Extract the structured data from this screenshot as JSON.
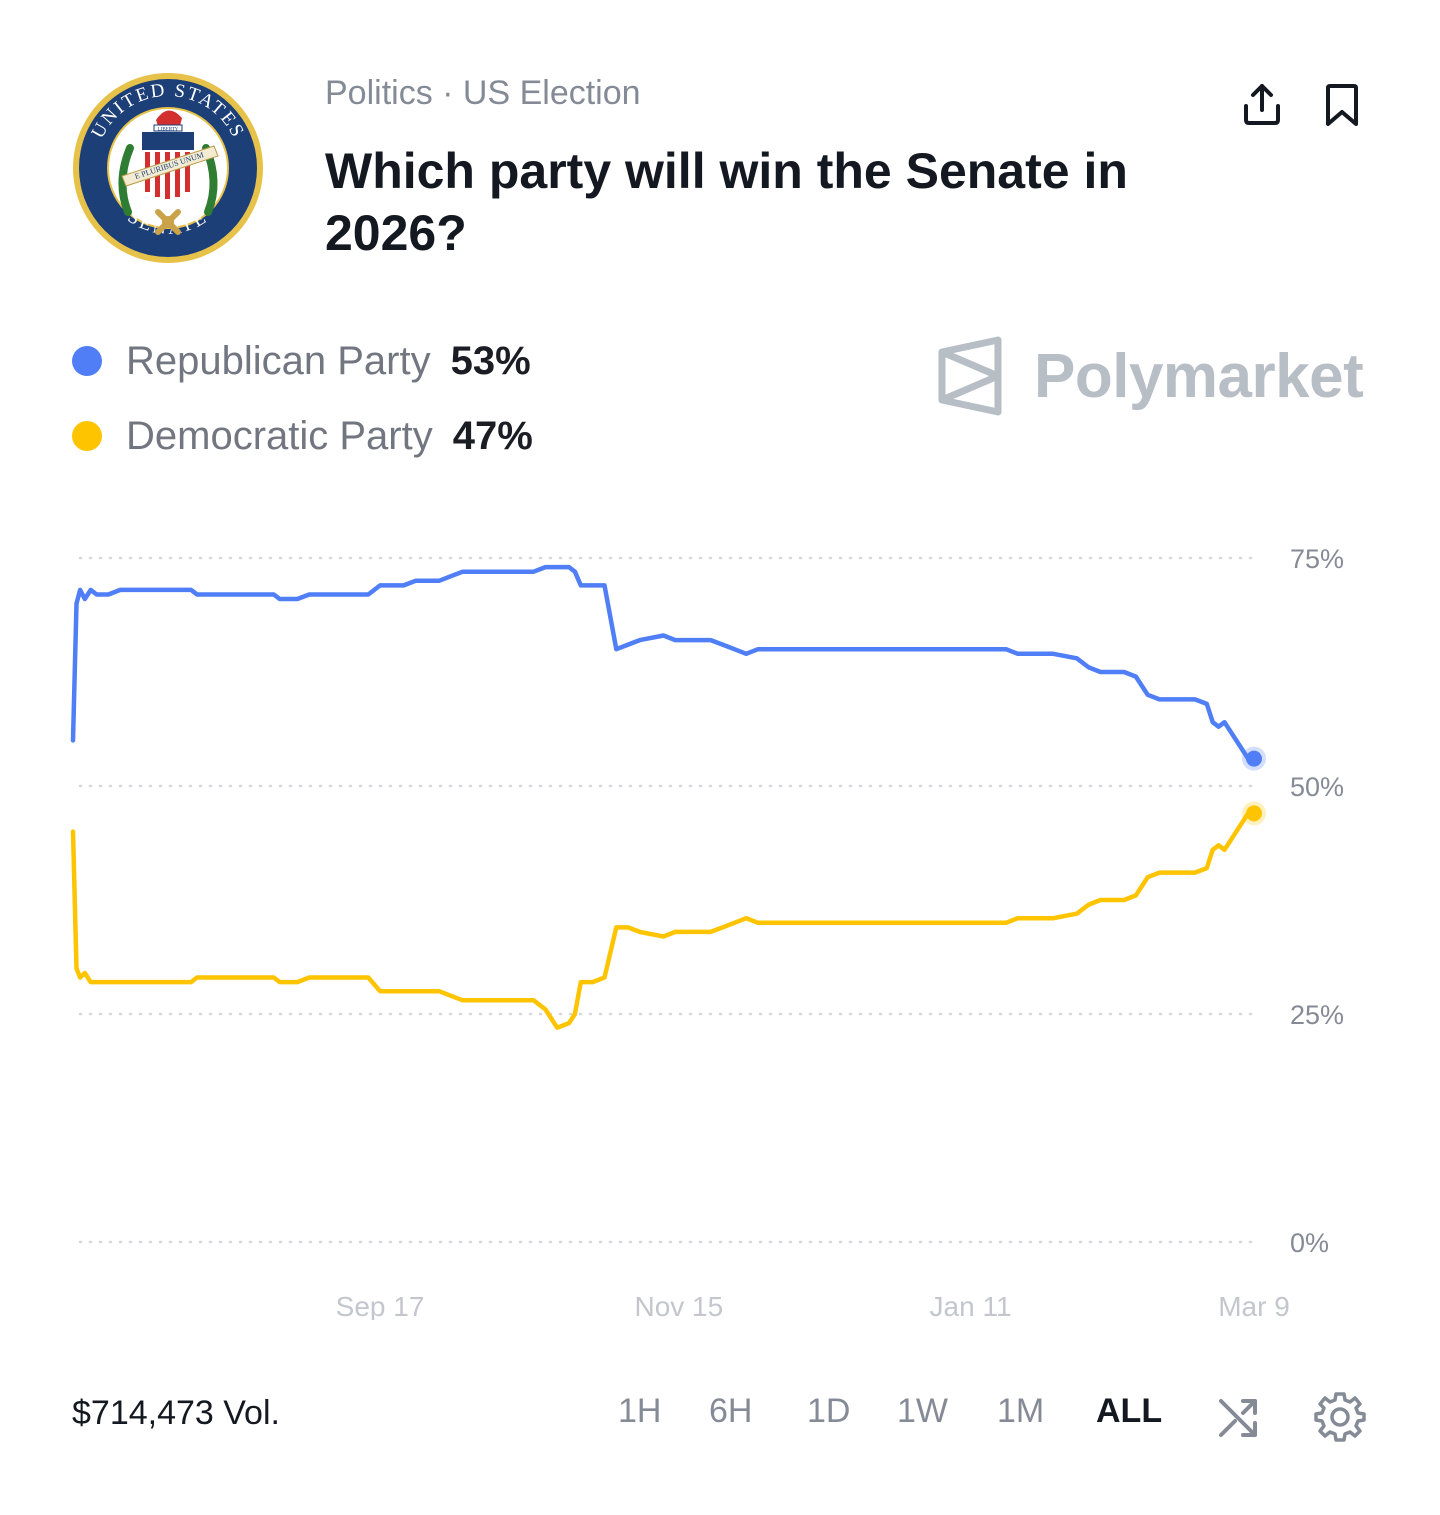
{
  "header": {
    "category": "Politics · US Election",
    "title": "Which party will win the Senate in 2026?",
    "logo": {
      "icon": "us-senate-seal-icon",
      "text_top": "UNITED STATES",
      "text_bottom": "SENATE",
      "motto": "E PLURIBUS UNUM",
      "cap_text": "LIBERTY"
    },
    "actions": [
      {
        "icon": "share-icon"
      },
      {
        "icon": "bookmark-icon"
      }
    ]
  },
  "legend": [
    {
      "name": "Republican Party",
      "value": "53%",
      "color": "#4f7ef7"
    },
    {
      "name": "Democratic Party",
      "value": "47%",
      "color": "#ffc400"
    }
  ],
  "brand": {
    "name": "Polymarket",
    "icon": "polymarket-logo-icon"
  },
  "footer": {
    "volume": "$714,473 Vol.",
    "ranges": [
      "1H",
      "6H",
      "1D",
      "1W",
      "1M",
      "ALL"
    ],
    "active_range": "ALL",
    "icons": [
      "shuffle-icon",
      "settings-gear-icon"
    ]
  },
  "chart_data": {
    "type": "line",
    "y_ticks": [
      "75%",
      "50%",
      "25%",
      "0%"
    ],
    "ylim": [
      0,
      75
    ],
    "x_ticks": [
      "Sep 17",
      "Nov 15",
      "Jan 11",
      "Mar 9"
    ],
    "x_tick_positions": [
      0.26,
      0.513,
      0.76,
      1.0
    ],
    "grid": "dotted horizontal",
    "series": [
      {
        "name": "Republican Party",
        "color": "#4f7ef7",
        "points": [
          [
            0.0,
            55
          ],
          [
            0.003,
            70
          ],
          [
            0.006,
            71.5
          ],
          [
            0.01,
            70.5
          ],
          [
            0.015,
            71.5
          ],
          [
            0.02,
            71
          ],
          [
            0.03,
            71
          ],
          [
            0.04,
            71.5
          ],
          [
            0.06,
            71.5
          ],
          [
            0.08,
            71.5
          ],
          [
            0.1,
            71.5
          ],
          [
            0.105,
            71
          ],
          [
            0.13,
            71
          ],
          [
            0.15,
            71
          ],
          [
            0.17,
            71
          ],
          [
            0.175,
            70.5
          ],
          [
            0.19,
            70.5
          ],
          [
            0.2,
            71
          ],
          [
            0.22,
            71
          ],
          [
            0.25,
            71
          ],
          [
            0.26,
            72
          ],
          [
            0.28,
            72
          ],
          [
            0.29,
            72.5
          ],
          [
            0.31,
            72.5
          ],
          [
            0.32,
            73
          ],
          [
            0.33,
            73.5
          ],
          [
            0.35,
            73.5
          ],
          [
            0.38,
            73.5
          ],
          [
            0.39,
            73.5
          ],
          [
            0.4,
            74
          ],
          [
            0.41,
            74
          ],
          [
            0.42,
            74
          ],
          [
            0.425,
            73.5
          ],
          [
            0.43,
            72
          ],
          [
            0.44,
            72
          ],
          [
            0.45,
            72
          ],
          [
            0.46,
            65
          ],
          [
            0.47,
            65.5
          ],
          [
            0.48,
            66
          ],
          [
            0.5,
            66.5
          ],
          [
            0.51,
            66
          ],
          [
            0.52,
            66
          ],
          [
            0.54,
            66
          ],
          [
            0.55,
            65.5
          ],
          [
            0.56,
            65
          ],
          [
            0.57,
            64.5
          ],
          [
            0.58,
            65
          ],
          [
            0.6,
            65
          ],
          [
            0.62,
            65
          ],
          [
            0.64,
            65
          ],
          [
            0.66,
            65
          ],
          [
            0.67,
            65
          ],
          [
            0.68,
            65
          ],
          [
            0.69,
            65
          ],
          [
            0.7,
            65
          ],
          [
            0.71,
            65
          ],
          [
            0.72,
            65
          ],
          [
            0.73,
            65
          ],
          [
            0.74,
            65
          ],
          [
            0.75,
            65
          ],
          [
            0.76,
            65
          ],
          [
            0.77,
            65
          ],
          [
            0.78,
            65
          ],
          [
            0.79,
            65
          ],
          [
            0.8,
            64.5
          ],
          [
            0.82,
            64.5
          ],
          [
            0.83,
            64.5
          ],
          [
            0.85,
            64
          ],
          [
            0.86,
            63
          ],
          [
            0.87,
            62.5
          ],
          [
            0.88,
            62.5
          ],
          [
            0.89,
            62.5
          ],
          [
            0.9,
            62
          ],
          [
            0.91,
            60
          ],
          [
            0.92,
            59.5
          ],
          [
            0.93,
            59.5
          ],
          [
            0.95,
            59.5
          ],
          [
            0.96,
            59
          ],
          [
            0.965,
            57
          ],
          [
            0.97,
            56.5
          ],
          [
            0.975,
            57
          ],
          [
            0.98,
            56
          ],
          [
            0.985,
            55
          ],
          [
            0.99,
            54
          ],
          [
            0.995,
            53
          ],
          [
            1.0,
            53
          ]
        ]
      },
      {
        "name": "Democratic Party",
        "color": "#ffc400",
        "points": [
          [
            0.0,
            45
          ],
          [
            0.003,
            30
          ],
          [
            0.006,
            29
          ],
          [
            0.01,
            29.5
          ],
          [
            0.015,
            28.5
          ],
          [
            0.02,
            28.5
          ],
          [
            0.04,
            28.5
          ],
          [
            0.06,
            28.5
          ],
          [
            0.08,
            28.5
          ],
          [
            0.1,
            28.5
          ],
          [
            0.105,
            29
          ],
          [
            0.13,
            29
          ],
          [
            0.15,
            29
          ],
          [
            0.17,
            29
          ],
          [
            0.175,
            28.5
          ],
          [
            0.19,
            28.5
          ],
          [
            0.2,
            29
          ],
          [
            0.22,
            29
          ],
          [
            0.25,
            29
          ],
          [
            0.26,
            27.5
          ],
          [
            0.28,
            27.5
          ],
          [
            0.29,
            27.5
          ],
          [
            0.31,
            27.5
          ],
          [
            0.32,
            27
          ],
          [
            0.33,
            26.5
          ],
          [
            0.35,
            26.5
          ],
          [
            0.38,
            26.5
          ],
          [
            0.39,
            26.5
          ],
          [
            0.4,
            25.5
          ],
          [
            0.41,
            23.5
          ],
          [
            0.42,
            24
          ],
          [
            0.425,
            25
          ],
          [
            0.43,
            28.5
          ],
          [
            0.44,
            28.5
          ],
          [
            0.45,
            29
          ],
          [
            0.46,
            34.5
          ],
          [
            0.47,
            34.5
          ],
          [
            0.48,
            34
          ],
          [
            0.5,
            33.5
          ],
          [
            0.51,
            34
          ],
          [
            0.52,
            34
          ],
          [
            0.54,
            34
          ],
          [
            0.55,
            34.5
          ],
          [
            0.56,
            35
          ],
          [
            0.57,
            35.5
          ],
          [
            0.58,
            35
          ],
          [
            0.6,
            35
          ],
          [
            0.62,
            35
          ],
          [
            0.64,
            35
          ],
          [
            0.66,
            35
          ],
          [
            0.67,
            35
          ],
          [
            0.68,
            35
          ],
          [
            0.69,
            35
          ],
          [
            0.7,
            35
          ],
          [
            0.71,
            35
          ],
          [
            0.72,
            35
          ],
          [
            0.73,
            35
          ],
          [
            0.74,
            35
          ],
          [
            0.75,
            35
          ],
          [
            0.76,
            35
          ],
          [
            0.77,
            35
          ],
          [
            0.78,
            35
          ],
          [
            0.79,
            35
          ],
          [
            0.8,
            35.5
          ],
          [
            0.82,
            35.5
          ],
          [
            0.83,
            35.5
          ],
          [
            0.85,
            36
          ],
          [
            0.86,
            37
          ],
          [
            0.87,
            37.5
          ],
          [
            0.88,
            37.5
          ],
          [
            0.89,
            37.5
          ],
          [
            0.9,
            38
          ],
          [
            0.91,
            40
          ],
          [
            0.92,
            40.5
          ],
          [
            0.93,
            40.5
          ],
          [
            0.95,
            40.5
          ],
          [
            0.96,
            41
          ],
          [
            0.965,
            43
          ],
          [
            0.97,
            43.5
          ],
          [
            0.975,
            43
          ],
          [
            0.98,
            44
          ],
          [
            0.985,
            45
          ],
          [
            0.99,
            46
          ],
          [
            0.995,
            47
          ],
          [
            1.0,
            47
          ]
        ]
      }
    ]
  }
}
